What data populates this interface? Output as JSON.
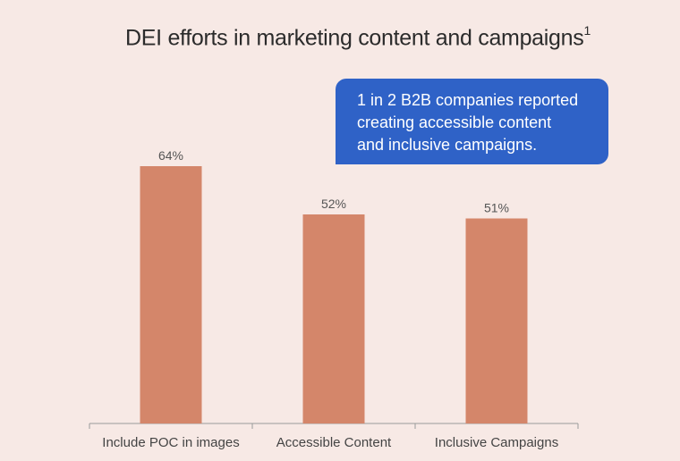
{
  "title": "DEI efforts in marketing content and campaigns",
  "title_footnote": "1",
  "callout": {
    "lines": [
      "1 in 2 B2B companies reported",
      "creating accessible content",
      "and inclusive campaigns."
    ],
    "color": "#2f62c7"
  },
  "chart_data": {
    "type": "bar",
    "title": "DEI efforts in marketing content and campaigns",
    "categories": [
      "Include POC in images",
      "Accessible Content",
      "Inclusive Campaigns"
    ],
    "values": [
      64,
      52,
      51
    ],
    "value_labels": [
      "64%",
      "52%",
      "51%"
    ],
    "xlabel": "",
    "ylabel": "",
    "ylim": [
      0,
      100
    ],
    "grid": false,
    "bar_color": "#d4866a",
    "axis_color": "#9a9a9a"
  }
}
